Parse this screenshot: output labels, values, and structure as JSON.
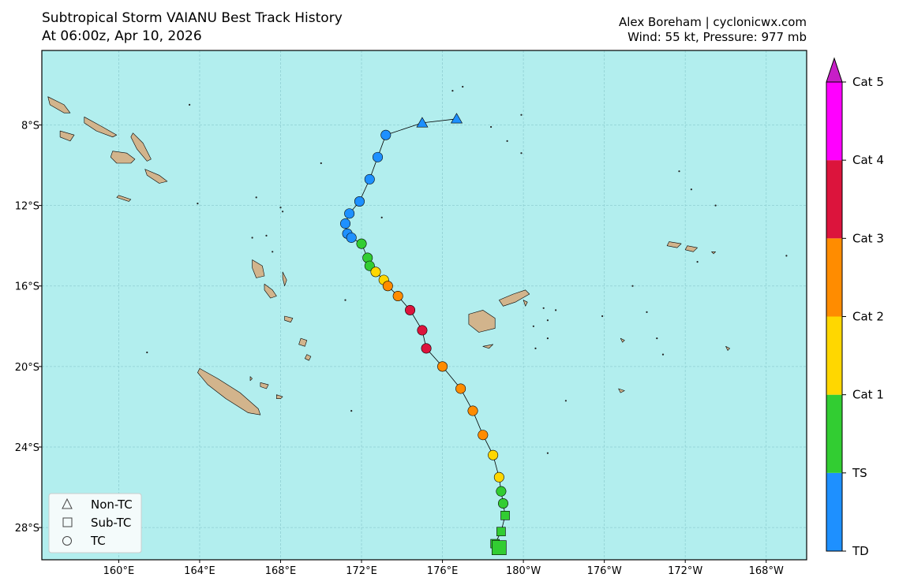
{
  "header": {
    "title_line1": "Subtropical Storm VAIANU Best Track History",
    "title_line2": "At 06:00z, Apr 10, 2026",
    "credit_line1": "Alex Boreham | cyclonicwx.com",
    "credit_line2": "Wind: 55 kt, Pressure: 977 mb"
  },
  "map": {
    "projection": "PlateCarree",
    "lon_range_east": [
      156.2,
      194.0
    ],
    "lat_range": [
      -4.3,
      -29.6
    ],
    "ocean_color": "#b2eeee",
    "land_color": "#d2b48c",
    "gridlines": true,
    "x_ticks": [
      {
        "lon": 160,
        "label": "160°E"
      },
      {
        "lon": 164,
        "label": "164°E"
      },
      {
        "lon": 168,
        "label": "168°E"
      },
      {
        "lon": 172,
        "label": "172°E"
      },
      {
        "lon": 176,
        "label": "176°E"
      },
      {
        "lon": 180,
        "label": "180°W"
      },
      {
        "lon": 184,
        "label": "176°W"
      },
      {
        "lon": 188,
        "label": "172°W"
      },
      {
        "lon": 192,
        "label": "168°W"
      }
    ],
    "y_ticks": [
      {
        "lat": -8,
        "label": "8°S"
      },
      {
        "lat": -12,
        "label": "12°S"
      },
      {
        "lat": -16,
        "label": "16°S"
      },
      {
        "lat": -20,
        "label": "20°S"
      },
      {
        "lat": -24,
        "label": "24°S"
      },
      {
        "lat": -28,
        "label": "28°S"
      }
    ]
  },
  "chart_data": {
    "type": "scatter",
    "x_unit": "degrees longitude east (0-360)",
    "y_unit": "degrees latitude",
    "track": [
      {
        "lon": 176.7,
        "lat": -7.7,
        "cls": "Non-TC",
        "int": "TD"
      },
      {
        "lon": 175.0,
        "lat": -7.9,
        "cls": "Non-TC",
        "int": "TD"
      },
      {
        "lon": 173.2,
        "lat": -8.5,
        "cls": "TC",
        "int": "TD"
      },
      {
        "lon": 172.8,
        "lat": -9.6,
        "cls": "TC",
        "int": "TD"
      },
      {
        "lon": 172.4,
        "lat": -10.7,
        "cls": "TC",
        "int": "TD"
      },
      {
        "lon": 171.9,
        "lat": -11.8,
        "cls": "TC",
        "int": "TD"
      },
      {
        "lon": 171.4,
        "lat": -12.4,
        "cls": "TC",
        "int": "TD"
      },
      {
        "lon": 171.2,
        "lat": -12.9,
        "cls": "TC",
        "int": "TD"
      },
      {
        "lon": 171.3,
        "lat": -13.4,
        "cls": "TC",
        "int": "TD"
      },
      {
        "lon": 171.5,
        "lat": -13.6,
        "cls": "TC",
        "int": "TD"
      },
      {
        "lon": 172.0,
        "lat": -13.9,
        "cls": "TC",
        "int": "TS"
      },
      {
        "lon": 172.3,
        "lat": -14.6,
        "cls": "TC",
        "int": "TS"
      },
      {
        "lon": 172.4,
        "lat": -15.0,
        "cls": "TC",
        "int": "TS"
      },
      {
        "lon": 172.7,
        "lat": -15.3,
        "cls": "TC",
        "int": "Cat 1"
      },
      {
        "lon": 173.1,
        "lat": -15.7,
        "cls": "TC",
        "int": "Cat 1"
      },
      {
        "lon": 173.3,
        "lat": -16.0,
        "cls": "TC",
        "int": "Cat 2"
      },
      {
        "lon": 173.8,
        "lat": -16.5,
        "cls": "TC",
        "int": "Cat 2"
      },
      {
        "lon": 174.4,
        "lat": -17.2,
        "cls": "TC",
        "int": "Cat 3"
      },
      {
        "lon": 175.0,
        "lat": -18.2,
        "cls": "TC",
        "int": "Cat 3"
      },
      {
        "lon": 175.2,
        "lat": -19.1,
        "cls": "TC",
        "int": "Cat 3"
      },
      {
        "lon": 176.0,
        "lat": -20.0,
        "cls": "TC",
        "int": "Cat 2"
      },
      {
        "lon": 176.9,
        "lat": -21.1,
        "cls": "TC",
        "int": "Cat 2"
      },
      {
        "lon": 177.5,
        "lat": -22.2,
        "cls": "TC",
        "int": "Cat 2"
      },
      {
        "lon": 178.0,
        "lat": -23.4,
        "cls": "TC",
        "int": "Cat 2"
      },
      {
        "lon": 178.5,
        "lat": -24.4,
        "cls": "TC",
        "int": "Cat 1"
      },
      {
        "lon": 178.8,
        "lat": -25.5,
        "cls": "TC",
        "int": "Cat 1"
      },
      {
        "lon": 178.9,
        "lat": -26.2,
        "cls": "TC",
        "int": "TS"
      },
      {
        "lon": 179.0,
        "lat": -26.8,
        "cls": "TC",
        "int": "TS"
      },
      {
        "lon": 179.1,
        "lat": -27.4,
        "cls": "Sub-TC",
        "int": "TS"
      },
      {
        "lon": 178.9,
        "lat": -28.2,
        "cls": "Sub-TC",
        "int": "TS"
      },
      {
        "lon": 178.6,
        "lat": -28.8,
        "cls": "Sub-TC",
        "int": "TS"
      },
      {
        "lon": 178.8,
        "lat": -29.0,
        "cls": "Sub-TC",
        "int": "TS",
        "current": true
      }
    ],
    "intensity_colors": {
      "TD": "#1e90ff",
      "TS": "#32cd32",
      "Cat 1": "#ffd700",
      "Cat 2": "#ff8c00",
      "Cat 3": "#dc143c",
      "Cat 4": "#ff00ff",
      "Cat 5": "#ff00ff"
    }
  },
  "legend": {
    "placement": "lower-left",
    "items": [
      {
        "label": "Non-TC",
        "shape": "triangle"
      },
      {
        "label": "Sub-TC",
        "shape": "square"
      },
      {
        "label": "TC",
        "shape": "circle"
      }
    ]
  },
  "colorbar": {
    "labels": [
      "TD",
      "TS",
      "Cat 1",
      "Cat 2",
      "Cat 3",
      "Cat 4",
      "Cat 5"
    ],
    "band_colors": [
      "#1e90ff",
      "#32cd32",
      "#ffd700",
      "#ff8c00",
      "#dc143c",
      "#ff00ff"
    ],
    "extend_color": "#c71fc7"
  }
}
